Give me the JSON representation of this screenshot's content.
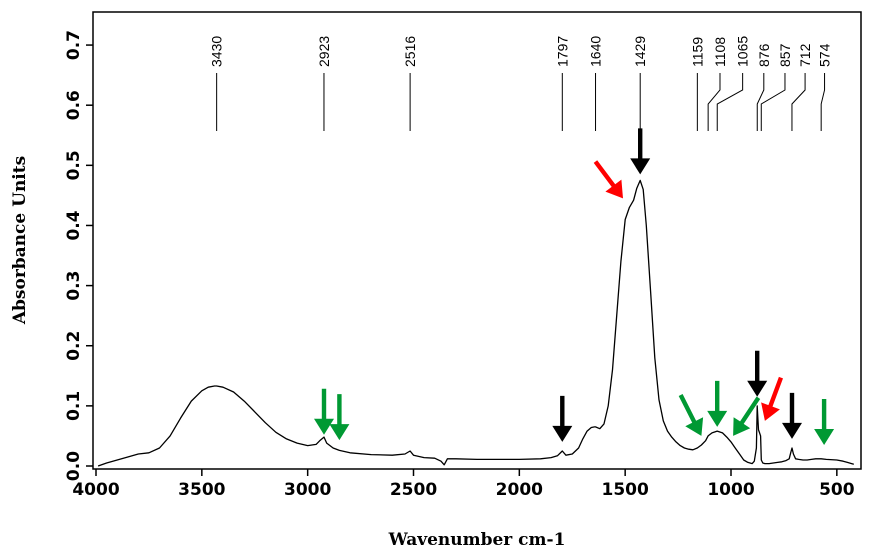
{
  "chart_data": {
    "type": "line",
    "xlabel": "Wavenumber cm-1",
    "ylabel": "Absorbance Units",
    "xlim": [
      4000,
      400
    ],
    "ylim": [
      0,
      0.75
    ],
    "x_ticks": [
      4000,
      3500,
      3000,
      2500,
      2000,
      1500,
      1000,
      500
    ],
    "x_tick_labels": [
      "4000",
      "3500",
      "3000",
      "2500",
      "2000",
      "1500",
      "1000",
      "500"
    ],
    "y_ticks": [
      0.0,
      0.1,
      0.2,
      0.3,
      0.4,
      0.5,
      0.6,
      0.7
    ],
    "y_tick_labels": [
      "0.0",
      "0.1",
      "0.2",
      "0.3",
      "0.4",
      "0.5",
      "0.6",
      "0.7"
    ],
    "grid": false,
    "series": [
      {
        "color": "#000000",
        "x": [
          3990,
          3950,
          3900,
          3850,
          3800,
          3750,
          3700,
          3650,
          3600,
          3550,
          3500,
          3470,
          3440,
          3430,
          3400,
          3350,
          3300,
          3250,
          3200,
          3150,
          3100,
          3050,
          3000,
          2960,
          2940,
          2923,
          2910,
          2880,
          2850,
          2800,
          2700,
          2600,
          2540,
          2516,
          2500,
          2450,
          2400,
          2370,
          2355,
          2340,
          2300,
          2200,
          2100,
          2000,
          1900,
          1850,
          1820,
          1797,
          1780,
          1750,
          1720,
          1700,
          1680,
          1660,
          1645,
          1640,
          1620,
          1600,
          1580,
          1560,
          1540,
          1520,
          1500,
          1480,
          1460,
          1445,
          1429,
          1415,
          1400,
          1380,
          1360,
          1340,
          1320,
          1300,
          1280,
          1260,
          1240,
          1220,
          1200,
          1180,
          1159,
          1140,
          1120,
          1108,
          1090,
          1065,
          1040,
          1020,
          1000,
          980,
          960,
          940,
          920,
          900,
          890,
          880,
          876,
          870,
          865,
          860,
          857,
          850,
          840,
          820,
          800,
          780,
          760,
          740,
          725,
          718,
          712,
          705,
          695,
          680,
          660,
          640,
          620,
          600,
          574,
          550,
          500,
          470,
          450,
          430,
          420
        ],
        "y": [
          0.0,
          0.005,
          0.01,
          0.015,
          0.02,
          0.022,
          0.03,
          0.05,
          0.08,
          0.108,
          0.125,
          0.131,
          0.133,
          0.133,
          0.131,
          0.123,
          0.108,
          0.09,
          0.072,
          0.056,
          0.045,
          0.038,
          0.034,
          0.036,
          0.043,
          0.048,
          0.038,
          0.03,
          0.026,
          0.022,
          0.019,
          0.018,
          0.02,
          0.025,
          0.018,
          0.014,
          0.013,
          0.008,
          0.002,
          0.012,
          0.012,
          0.011,
          0.011,
          0.011,
          0.012,
          0.014,
          0.017,
          0.025,
          0.018,
          0.02,
          0.03,
          0.045,
          0.058,
          0.064,
          0.065,
          0.065,
          0.062,
          0.07,
          0.1,
          0.16,
          0.25,
          0.34,
          0.41,
          0.43,
          0.442,
          0.462,
          0.475,
          0.46,
          0.4,
          0.29,
          0.18,
          0.11,
          0.075,
          0.058,
          0.048,
          0.04,
          0.034,
          0.03,
          0.028,
          0.027,
          0.03,
          0.035,
          0.042,
          0.05,
          0.055,
          0.058,
          0.055,
          0.048,
          0.04,
          0.03,
          0.02,
          0.01,
          0.006,
          0.004,
          0.008,
          0.03,
          0.1,
          0.06,
          0.055,
          0.05,
          0.01,
          0.005,
          0.004,
          0.004,
          0.005,
          0.006,
          0.007,
          0.009,
          0.012,
          0.022,
          0.03,
          0.02,
          0.012,
          0.011,
          0.01,
          0.01,
          0.011,
          0.012,
          0.012,
          0.011,
          0.01,
          0.008,
          0.006,
          0.004,
          0.003
        ]
      }
    ],
    "peak_labels": [
      {
        "x": 3430,
        "label": "3430",
        "label_x": 3430
      },
      {
        "x": 2923,
        "label": "2923",
        "label_x": 2923
      },
      {
        "x": 2516,
        "label": "2516",
        "label_x": 2516
      },
      {
        "x": 1797,
        "label": "1797",
        "label_x": 1797
      },
      {
        "x": 1640,
        "label": "1640",
        "label_x": 1640
      },
      {
        "x": 1429,
        "label": "1429",
        "label_x": 1429
      },
      {
        "x": 1159,
        "label": "1159",
        "label_x": 1159
      },
      {
        "x": 1108,
        "label": "1108",
        "label_x": 1052
      },
      {
        "x": 1065,
        "label": "1065",
        "label_x": 945
      },
      {
        "x": 876,
        "label": "876",
        "label_x": 845
      },
      {
        "x": 857,
        "label": "857",
        "label_x": 745
      },
      {
        "x": 712,
        "label": "712",
        "label_x": 650
      },
      {
        "x": 574,
        "label": "574",
        "label_x": 558
      }
    ],
    "annotations": [
      {
        "type": "arrow",
        "color": "#009933",
        "x": 2923,
        "y": 0.052
      },
      {
        "type": "arrow",
        "color": "#009933",
        "x": 2850,
        "y": 0.043
      },
      {
        "type": "arrow",
        "color": "#000000",
        "x": 1797,
        "y": 0.04
      },
      {
        "type": "arrow",
        "color": "#ff0000",
        "x": 1510,
        "y": 0.445
      },
      {
        "type": "arrow",
        "color": "#000000",
        "x": 1429,
        "y": 0.485
      },
      {
        "type": "arrow",
        "color": "#009933",
        "x": 1140,
        "y": 0.05
      },
      {
        "type": "arrow",
        "color": "#009933",
        "x": 1065,
        "y": 0.065
      },
      {
        "type": "arrow",
        "color": "#009933",
        "x": 990,
        "y": 0.05
      },
      {
        "type": "arrow",
        "color": "#000000",
        "x": 876,
        "y": 0.115
      },
      {
        "type": "arrow",
        "color": "#ff0000",
        "x": 840,
        "y": 0.075
      },
      {
        "type": "arrow",
        "color": "#000000",
        "x": 712,
        "y": 0.045
      },
      {
        "type": "arrow",
        "color": "#009933",
        "x": 560,
        "y": 0.035
      }
    ]
  }
}
